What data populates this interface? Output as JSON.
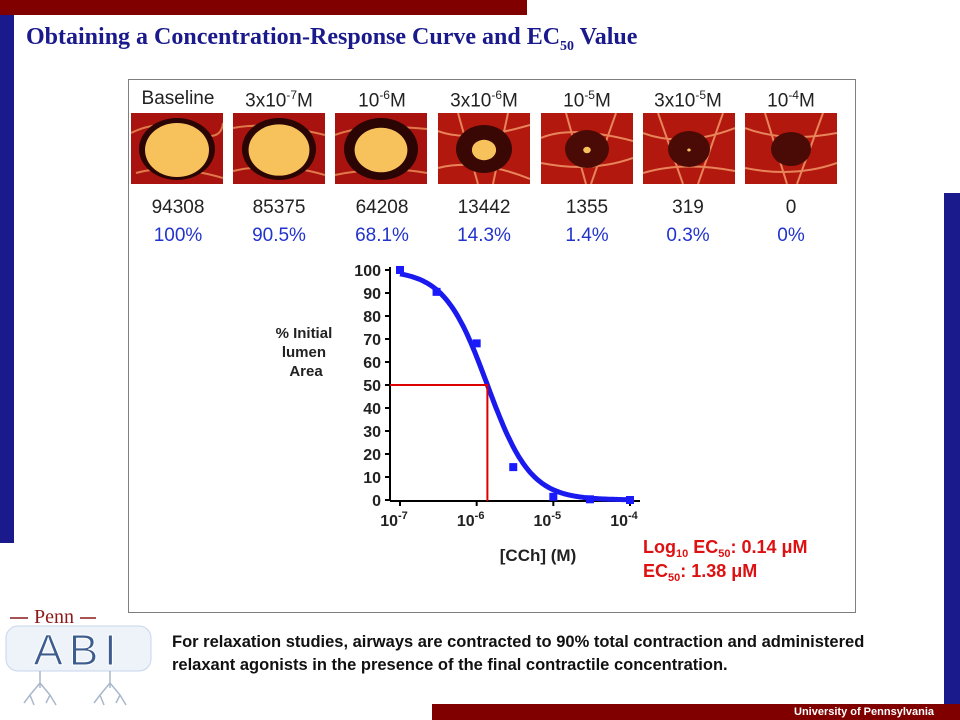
{
  "title": {
    "main": "Obtaining a Concentration-Response Curve and EC",
    "sub": "50",
    "suffix": " Value"
  },
  "images": [
    {
      "label": "Baseline",
      "count": "94308",
      "percent": "100%",
      "lumen": 1.0
    },
    {
      "label": "3x10-7M",
      "count": "85375",
      "percent": "90.5%",
      "lumen": 0.905
    },
    {
      "label": "10-6M",
      "count": "64208",
      "percent": "68.1%",
      "lumen": 0.681
    },
    {
      "label": "3x10-6M",
      "count": "13442",
      "percent": "14.3%",
      "lumen": 0.143
    },
    {
      "label": "10-5M",
      "count": "1355",
      "percent": "1.4%",
      "lumen": 0.014
    },
    {
      "label": "3x10-5M",
      "count": "319",
      "percent": "0.3%",
      "lumen": 0.003
    },
    {
      "label": "10-4M",
      "count": "0",
      "percent": "0%",
      "lumen": 0.0
    }
  ],
  "chart_data": {
    "type": "scatter",
    "ylabel": "% Initial lumen Area",
    "xlabel": "[CCh] (M)",
    "x_scale": "log",
    "xlim": [
      1e-07,
      0.0001
    ],
    "ylim": [
      0,
      100
    ],
    "x_ticks": [
      "10-7",
      "10-6",
      "10-5",
      "10-4"
    ],
    "y_ticks": [
      "0",
      "10",
      "20",
      "30",
      "40",
      "50",
      "60",
      "70",
      "80",
      "90",
      "100"
    ],
    "points": [
      {
        "x": 1e-07,
        "y": 100
      },
      {
        "x": 3e-07,
        "y": 90.5
      },
      {
        "x": 1e-06,
        "y": 68.1
      },
      {
        "x": 3e-06,
        "y": 14.3
      },
      {
        "x": 1e-05,
        "y": 1.4
      },
      {
        "x": 3e-05,
        "y": 0.3
      },
      {
        "x": 0.0001,
        "y": 0
      }
    ],
    "fit_curve": {
      "log_ec50": -5.86,
      "hill_slope": -1.55,
      "top": 100,
      "bottom": 0
    },
    "ec50_marker": {
      "x": 1.38e-06,
      "y": 50
    },
    "annotations": [
      "Log10 EC50: 0.14 μM",
      "EC50: 1.38 μM"
    ],
    "colors": {
      "points": "#1a1aff",
      "curve": "#1a1aee",
      "marker": "#dd0000",
      "annotation": "#dd1111"
    },
    "grid": false
  },
  "logo": {
    "top": "Penn",
    "main": "ABI"
  },
  "caption": "For relaxation studies, airways are contracted to 90% total contraction and administered relaxant agonists in the presence of the final contractile concentration.",
  "footer": "University  of Pennsylvania"
}
